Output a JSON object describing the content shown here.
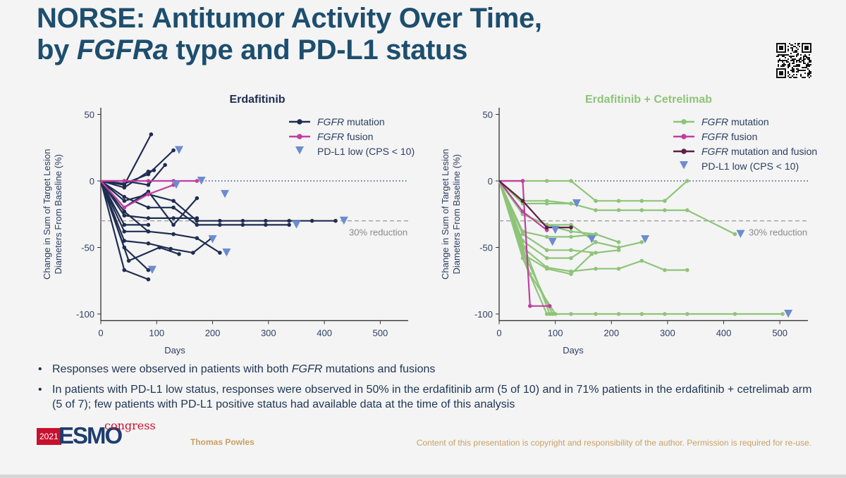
{
  "slide": {
    "title_line1": "NORSE: Antitumor Activity Over Time,",
    "title_line2_pre": "by ",
    "title_line2_italic": "FGFRa",
    "title_line2_post": " type and PD-L1 status",
    "bullets": [
      {
        "italic_prefix": "",
        "pre": "Responses were observed in patients with both ",
        "italic": "FGFR",
        "post": " mutations and fusions"
      },
      {
        "pre": "In patients with PD-L1 low status, responses were observed in 50% in the erdafitinib arm (5 of 10) and in 71% patients in the erdafitinib + cetrelimab arm (5 of 7); few patients with PD-L1 positive status had available data at the time of this analysis"
      }
    ],
    "footer": {
      "logo_year": "2021",
      "logo_text": "ESMO",
      "logo_congress": "congress",
      "presenter": "Thomas Powles",
      "copyright": "Content of this presentation is copyright and responsibility of the author. Permission is required for re-use."
    },
    "colors": {
      "title": "#1d4e6e",
      "navy": "#1f2d52",
      "pink": "#c13fa0",
      "green": "#8ec479",
      "purple": "#5c1f47",
      "triangle": "#6d8bd0",
      "axis_text": "#2c3e64",
      "zero_line": "#3a4d74",
      "reduction_line": "#a0a0a0"
    }
  },
  "chart_data": [
    {
      "type": "line",
      "title": "Erdafitinib",
      "title_color": "#1f2d52",
      "xlabel": "Days",
      "ylabel_lines": [
        "Change in Sum of Target Lesion",
        "Diameters From Baseline (%)"
      ],
      "xlim": [
        0,
        550
      ],
      "ylim": [
        -105,
        55
      ],
      "xticks": [
        0,
        100,
        200,
        300,
        400,
        500
      ],
      "yticks": [
        50,
        0,
        -50,
        -100
      ],
      "reference_lines": [
        {
          "y": 0,
          "style": "dotted"
        },
        {
          "y": -30,
          "style": "dashed",
          "label": "30% reduction"
        }
      ],
      "legend": {
        "placement": "top-right",
        "entries": [
          {
            "kind": "line",
            "color_key": "navy",
            "italic": "FGFR",
            "text": " mutation"
          },
          {
            "kind": "line",
            "color_key": "pink",
            "italic": "FGFR",
            "text": " fusion"
          },
          {
            "kind": "triangle",
            "color_key": "triangle",
            "italic": "",
            "text": "PD-L1 low (CPS < 10)"
          }
        ]
      },
      "series": [
        {
          "color_key": "navy",
          "points": [
            [
              0,
              0
            ],
            [
              42,
              -3
            ],
            [
              90,
              35
            ]
          ]
        },
        {
          "color_key": "navy",
          "points": [
            [
              0,
              0
            ],
            [
              42,
              -2
            ],
            [
              85,
              5
            ],
            [
              130,
              23
            ]
          ]
        },
        {
          "color_key": "navy",
          "points": [
            [
              0,
              0
            ],
            [
              42,
              0
            ],
            [
              85,
              -3
            ],
            [
              115,
              12
            ]
          ]
        },
        {
          "color_key": "navy",
          "points": [
            [
              0,
              0
            ],
            [
              42,
              -5
            ],
            [
              85,
              7
            ],
            [
              95,
              8
            ]
          ]
        },
        {
          "color_key": "navy",
          "points": [
            [
              0,
              0
            ],
            [
              42,
              -12
            ],
            [
              85,
              -20
            ],
            [
              130,
              -20
            ],
            [
              172,
              -33
            ],
            [
              213,
              -33
            ],
            [
              254,
              -33
            ],
            [
              295,
              -33
            ],
            [
              337,
              -33
            ]
          ],
          "marker_end": true
        },
        {
          "color_key": "navy",
          "points": [
            [
              0,
              0
            ],
            [
              42,
              -15
            ],
            [
              85,
              -10
            ],
            [
              130,
              -15
            ],
            [
              172,
              -30
            ],
            [
              213,
              -30
            ],
            [
              254,
              -30
            ],
            [
              295,
              -30
            ],
            [
              337,
              -30
            ],
            [
              378,
              -30
            ],
            [
              420,
              -30
            ]
          ],
          "marker_end": true
        },
        {
          "color_key": "navy",
          "points": [
            [
              0,
              0
            ],
            [
              42,
              -20
            ],
            [
              85,
              -8
            ],
            [
              130,
              -33
            ],
            [
              172,
              -13
            ]
          ]
        },
        {
          "color_key": "navy",
          "points": [
            [
              0,
              0
            ],
            [
              42,
              -23
            ],
            [
              85,
              -38
            ],
            [
              130,
              -40
            ],
            [
              172,
              -43
            ],
            [
              213,
              -54
            ]
          ],
          "marker_end": true
        },
        {
          "color_key": "navy",
          "points": [
            [
              0,
              0
            ],
            [
              42,
              -26
            ],
            [
              85,
              -28
            ],
            [
              130,
              -28
            ],
            [
              172,
              -28
            ]
          ]
        },
        {
          "color_key": "navy",
          "points": [
            [
              0,
              0
            ],
            [
              42,
              -33
            ],
            [
              85,
              -33
            ]
          ]
        },
        {
          "color_key": "navy",
          "points": [
            [
              0,
              0
            ],
            [
              42,
              -38
            ],
            [
              85,
              -38
            ]
          ]
        },
        {
          "color_key": "navy",
          "points": [
            [
              0,
              0
            ],
            [
              42,
              -45
            ],
            [
              85,
              -47
            ],
            [
              125,
              -51
            ],
            [
              165,
              -54
            ],
            [
              198,
              -43
            ]
          ]
        },
        {
          "color_key": "navy",
          "points": [
            [
              0,
              0
            ],
            [
              42,
              -50
            ],
            [
              85,
              -67
            ]
          ]
        },
        {
          "color_key": "navy",
          "points": [
            [
              0,
              0
            ],
            [
              42,
              -67
            ],
            [
              85,
              -74
            ]
          ]
        },
        {
          "color_key": "navy",
          "points": [
            [
              0,
              0
            ],
            [
              50,
              -60
            ],
            [
              105,
              -50
            ],
            [
              140,
              -55
            ]
          ]
        },
        {
          "color_key": "pink",
          "points": [
            [
              0,
              0
            ],
            [
              42,
              0
            ],
            [
              85,
              0
            ],
            [
              130,
              0
            ],
            [
              172,
              0
            ]
          ],
          "marker_end": true
        },
        {
          "color_key": "pink",
          "points": [
            [
              0,
              0
            ],
            [
              42,
              -20
            ],
            [
              85,
              -10
            ],
            [
              130,
              -3
            ]
          ]
        }
      ],
      "triangles": [
        [
          140,
          23
        ],
        [
          135,
          -3
        ],
        [
          180,
          0
        ],
        [
          222,
          -10
        ],
        [
          350,
          -33
        ],
        [
          435,
          -30
        ],
        [
          200,
          -44
        ],
        [
          225,
          -54
        ],
        [
          92,
          -67
        ]
      ]
    },
    {
      "type": "line",
      "title": "Erdafitinib + Cetrelimab",
      "title_color": "#8ec479",
      "xlabel": "Days",
      "ylabel_lines": [
        "Change in Sum of Target Lesion",
        "Diameters From Baseline (%)"
      ],
      "xlim": [
        0,
        550
      ],
      "ylim": [
        -105,
        55
      ],
      "xticks": [
        0,
        100,
        200,
        300,
        400,
        500
      ],
      "yticks": [
        50,
        0,
        -50,
        -100
      ],
      "reference_lines": [
        {
          "y": 0,
          "style": "dotted"
        },
        {
          "y": -30,
          "style": "dashed",
          "label": "30% reduction"
        }
      ],
      "legend": {
        "placement": "top-right",
        "entries": [
          {
            "kind": "line",
            "color_key": "green",
            "italic": "FGFR",
            "text": " mutation"
          },
          {
            "kind": "line",
            "color_key": "pink",
            "italic": "FGFR",
            "text": " fusion"
          },
          {
            "kind": "line",
            "color_key": "purple",
            "italic": "FGFR",
            "text": " mutation and fusion"
          },
          {
            "kind": "triangle",
            "color_key": "triangle",
            "italic": "",
            "text": "PD-L1 low (CPS < 10)"
          }
        ]
      },
      "series": [
        {
          "color_key": "green",
          "points": [
            [
              0,
              0
            ],
            [
              42,
              0
            ],
            [
              85,
              0
            ],
            [
              128,
              0
            ],
            [
              172,
              -15
            ],
            [
              213,
              -15
            ],
            [
              254,
              -15
            ],
            [
              295,
              -15
            ],
            [
              335,
              0
            ]
          ]
        },
        {
          "color_key": "green",
          "points": [
            [
              0,
              0
            ],
            [
              42,
              -17
            ],
            [
              85,
              -17
            ],
            [
              128,
              -17
            ],
            [
              172,
              -22
            ],
            [
              213,
              -22
            ],
            [
              254,
              -22
            ],
            [
              295,
              -22
            ],
            [
              335,
              -22
            ],
            [
              420,
              -40
            ]
          ],
          "marker_end": true
        },
        {
          "color_key": "green",
          "points": [
            [
              0,
              0
            ],
            [
              42,
              -15
            ],
            [
              85,
              -15
            ],
            [
              128,
              -17
            ]
          ]
        },
        {
          "color_key": "green",
          "points": [
            [
              0,
              0
            ],
            [
              42,
              -25
            ],
            [
              85,
              -33
            ],
            [
              128,
              -33
            ],
            [
              172,
              -46
            ],
            [
              213,
              -50
            ],
            [
              254,
              -46
            ]
          ]
        },
        {
          "color_key": "green",
          "points": [
            [
              0,
              0
            ],
            [
              42,
              -25
            ],
            [
              85,
              -33
            ],
            [
              128,
              -38
            ],
            [
              172,
              -40
            ],
            [
              213,
              -46
            ]
          ]
        },
        {
          "color_key": "green",
          "points": [
            [
              0,
              0
            ],
            [
              42,
              -38
            ],
            [
              85,
              -42
            ],
            [
              128,
              -42
            ],
            [
              172,
              -40
            ]
          ]
        },
        {
          "color_key": "green",
          "points": [
            [
              0,
              0
            ],
            [
              42,
              -40
            ],
            [
              85,
              -52
            ],
            [
              128,
              -52
            ],
            [
              172,
              -54
            ],
            [
              213,
              -52
            ]
          ]
        },
        {
          "color_key": "green",
          "points": [
            [
              0,
              0
            ],
            [
              42,
              -45
            ],
            [
              85,
              -58
            ],
            [
              128,
              -58
            ],
            [
              172,
              -46
            ]
          ]
        },
        {
          "color_key": "green",
          "points": [
            [
              0,
              0
            ],
            [
              42,
              -50
            ],
            [
              85,
              -65
            ],
            [
              128,
              -68
            ],
            [
              172,
              -66
            ],
            [
              213,
              -66
            ],
            [
              254,
              -60
            ],
            [
              295,
              -67
            ],
            [
              335,
              -67
            ]
          ]
        },
        {
          "color_key": "green",
          "points": [
            [
              0,
              0
            ],
            [
              42,
              -55
            ],
            [
              85,
              -66
            ],
            [
              128,
              -70
            ],
            [
              165,
              -55
            ]
          ]
        },
        {
          "color_key": "green",
          "points": [
            [
              0,
              0
            ],
            [
              42,
              -58
            ],
            [
              85,
              -100
            ],
            [
              128,
              -100
            ],
            [
              172,
              -100
            ],
            [
              213,
              -100
            ],
            [
              254,
              -100
            ],
            [
              295,
              -100
            ],
            [
              335,
              -100
            ],
            [
              420,
              -100
            ],
            [
              505,
              -100
            ]
          ],
          "marker_end": true
        },
        {
          "color_key": "green",
          "points": [
            [
              0,
              0
            ],
            [
              45,
              -50
            ],
            [
              90,
              -100
            ]
          ]
        },
        {
          "color_key": "green",
          "points": [
            [
              0,
              0
            ],
            [
              50,
              -60
            ],
            [
              95,
              -100
            ]
          ]
        },
        {
          "color_key": "green",
          "points": [
            [
              0,
              0
            ],
            [
              55,
              -70
            ],
            [
              100,
              -100
            ]
          ]
        },
        {
          "color_key": "pink",
          "points": [
            [
              0,
              0
            ],
            [
              42,
              0
            ],
            [
              55,
              -94
            ],
            [
              90,
              -94
            ]
          ]
        },
        {
          "color_key": "pink",
          "points": [
            [
              0,
              0
            ],
            [
              42,
              -23
            ],
            [
              85,
              -37
            ]
          ]
        },
        {
          "color_key": "purple",
          "points": [
            [
              0,
              0
            ],
            [
              42,
              -15
            ],
            [
              85,
              -35
            ],
            [
              128,
              -35
            ]
          ]
        }
      ],
      "triangles": [
        [
          138,
          -17
        ],
        [
          100,
          -37
        ],
        [
          95,
          -46
        ],
        [
          165,
          -44
        ],
        [
          260,
          -44
        ],
        [
          430,
          -40
        ],
        [
          515,
          -100
        ]
      ]
    }
  ]
}
